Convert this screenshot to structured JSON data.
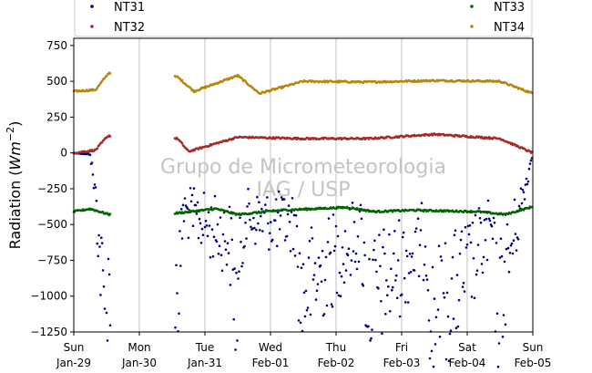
{
  "chart_data": {
    "type": "scatter",
    "ylabel_prefix": "Radiation (",
    "ylabel_unit_base": "Wm",
    "ylabel_unit_exp": "−2",
    "ylabel_suffix": ")",
    "ylim": [
      -1250,
      800
    ],
    "yticks": [
      750,
      500,
      250,
      0,
      -250,
      -500,
      -750,
      -1000,
      -1250
    ],
    "ytick_labels": [
      "750",
      "500",
      "250",
      "0",
      "−250",
      "−500",
      "−750",
      "−1000",
      "−1250"
    ],
    "xlim": [
      "2023-01-29",
      "2023-02-05"
    ],
    "xticks": [
      {
        "day": "Sun",
        "date": "Jan-29"
      },
      {
        "day": "Mon",
        "date": "Jan-30"
      },
      {
        "day": "Tue",
        "date": "Jan-31"
      },
      {
        "day": "Wed",
        "date": "Feb-01"
      },
      {
        "day": "Thu",
        "date": "Feb-02"
      },
      {
        "day": "Fri",
        "date": "Feb-03"
      },
      {
        "day": "Sat",
        "date": "Feb-04"
      },
      {
        "day": "Sun",
        "date": "Feb-05"
      }
    ],
    "grid": "vertical",
    "legend_placement": "top",
    "watermark": [
      "Grupo de Micrometeorologia",
      "IAG / USP"
    ],
    "data_gap": [
      "2023-01-29T13:30",
      "2023-01-30T13:00"
    ],
    "series": [
      {
        "name": "NT31",
        "color": "#000080",
        "sample_points": [
          [
            "2023-01-29T00:00",
            0
          ],
          [
            "2023-01-29T06:00",
            -10
          ],
          [
            "2023-01-29T08:00",
            -300
          ],
          [
            "2023-01-29T09:30",
            -700
          ],
          [
            "2023-01-29T11:00",
            -1050
          ],
          [
            "2023-01-29T12:00",
            -1150
          ],
          [
            "2023-01-29T13:00",
            -900
          ],
          [
            "2023-01-30T14:30",
            -950
          ],
          [
            "2023-01-30T16:00",
            -400
          ],
          [
            "2023-01-31T09:00",
            -600
          ],
          [
            "2023-01-31T11:30",
            -1100
          ],
          [
            "2023-01-31T14:30",
            -450
          ],
          [
            "2023-02-01T09:00",
            -500
          ],
          [
            "2023-02-01T11:00",
            -980
          ],
          [
            "2023-02-02T09:00",
            -550
          ],
          [
            "2023-02-02T11:30",
            -1030
          ],
          [
            "2023-02-03T09:00",
            -600
          ],
          [
            "2023-02-03T11:00",
            -1200
          ],
          [
            "2023-02-04T09:00",
            -550
          ],
          [
            "2023-02-04T11:00",
            -1100
          ],
          [
            "2023-02-05T00:00",
            0
          ]
        ]
      },
      {
        "name": "NT32",
        "color": "#a52a2a",
        "sample_points": [
          [
            "2023-01-29T00:00",
            0
          ],
          [
            "2023-01-29T08:00",
            20
          ],
          [
            "2023-01-29T12:00",
            110
          ],
          [
            "2023-01-29T13:00",
            120
          ],
          [
            "2023-01-30T14:00",
            100
          ],
          [
            "2023-01-30T18:00",
            10
          ],
          [
            "2023-01-31T12:00",
            110
          ],
          [
            "2023-02-01T12:00",
            100
          ],
          [
            "2023-02-02T12:00",
            100
          ],
          [
            "2023-02-03T12:00",
            130
          ],
          [
            "2023-02-04T12:00",
            100
          ],
          [
            "2023-02-05T00:00",
            0
          ]
        ]
      },
      {
        "name": "NT33",
        "color": "#006400",
        "sample_points": [
          [
            "2023-01-29T00:00",
            -410
          ],
          [
            "2023-01-29T06:00",
            -390
          ],
          [
            "2023-01-29T13:00",
            -430
          ],
          [
            "2023-01-30T14:00",
            -420
          ],
          [
            "2023-01-31T04:00",
            -390
          ],
          [
            "2023-01-31T12:00",
            -430
          ],
          [
            "2023-02-01T04:00",
            -400
          ],
          [
            "2023-02-02T04:00",
            -380
          ],
          [
            "2023-02-02T14:00",
            -410
          ],
          [
            "2023-02-03T04:00",
            -400
          ],
          [
            "2023-02-04T04:00",
            -410
          ],
          [
            "2023-02-04T14:00",
            -430
          ],
          [
            "2023-02-05T00:00",
            -375
          ]
        ]
      },
      {
        "name": "NT34",
        "color": "#b8860b",
        "sample_points": [
          [
            "2023-01-29T00:00",
            430
          ],
          [
            "2023-01-29T08:00",
            440
          ],
          [
            "2023-01-29T12:00",
            540
          ],
          [
            "2023-01-29T13:00",
            560
          ],
          [
            "2023-01-30T14:00",
            530
          ],
          [
            "2023-01-30T20:00",
            430
          ],
          [
            "2023-01-31T12:00",
            540
          ],
          [
            "2023-01-31T20:00",
            415
          ],
          [
            "2023-02-01T12:00",
            500
          ],
          [
            "2023-02-02T12:00",
            495
          ],
          [
            "2023-02-03T12:00",
            505
          ],
          [
            "2023-02-04T12:00",
            500
          ],
          [
            "2023-02-05T00:00",
            415
          ]
        ]
      }
    ]
  }
}
